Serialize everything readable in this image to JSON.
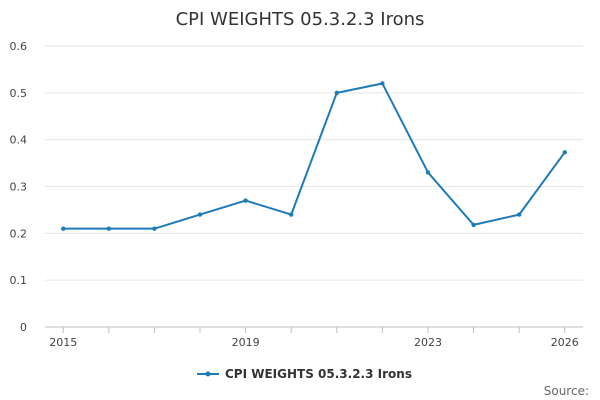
{
  "chart_data": {
    "type": "line",
    "title": "CPI WEIGHTS 05.3.2.3 Irons",
    "xlabel": "",
    "ylabel": "",
    "x": [
      2015,
      2016,
      2017,
      2018,
      2019,
      2020,
      2021,
      2022,
      2023,
      2024,
      2025,
      2026
    ],
    "x_tick_labels": [
      "2015",
      "2019",
      "2023",
      "2026"
    ],
    "x_tick_values": [
      2015,
      2019,
      2023,
      2026
    ],
    "y_tick_labels": [
      "0",
      "0.1",
      "0.2",
      "0.3",
      "0.4",
      "0.5",
      "0.6"
    ],
    "ylim": [
      0,
      0.6
    ],
    "xlim": [
      2014.6,
      2026.4
    ],
    "grid": true,
    "legend_position": "bottom",
    "series": [
      {
        "name": "CPI WEIGHTS 05.3.2.3 Irons",
        "color": "#1f7ab8",
        "values": [
          0.21,
          0.21,
          0.21,
          0.24,
          0.27,
          0.24,
          0.5,
          0.52,
          0.33,
          0.218,
          0.24,
          0.373
        ]
      }
    ],
    "source_label": "Source:"
  }
}
